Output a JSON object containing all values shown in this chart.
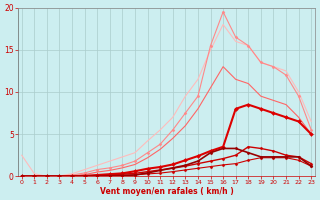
{
  "x": [
    0,
    1,
    2,
    3,
    4,
    5,
    6,
    7,
    8,
    9,
    10,
    11,
    12,
    13,
    14,
    15,
    16,
    17,
    18,
    19,
    20,
    21,
    22,
    23
  ],
  "line_lightest": [
    2.5,
    0.3,
    0.0,
    0.05,
    0.3,
    0.8,
    1.3,
    1.8,
    2.3,
    2.8,
    4.2,
    5.5,
    7.0,
    9.5,
    11.5,
    15.0,
    18.0,
    16.0,
    15.5,
    13.5,
    13.0,
    12.5,
    10.0,
    6.5
  ],
  "line_light": [
    0.0,
    0.0,
    0.0,
    0.0,
    0.15,
    0.4,
    0.8,
    1.0,
    1.3,
    1.8,
    2.8,
    3.8,
    5.5,
    7.5,
    9.5,
    15.5,
    19.5,
    16.5,
    15.5,
    13.5,
    13.0,
    12.0,
    9.5,
    5.5
  ],
  "line_mid": [
    0.0,
    0.0,
    0.0,
    0.0,
    0.05,
    0.2,
    0.5,
    0.7,
    1.0,
    1.4,
    2.2,
    3.2,
    4.5,
    6.0,
    8.0,
    10.5,
    13.0,
    11.5,
    11.0,
    9.5,
    9.0,
    8.5,
    7.0,
    5.0
  ],
  "line_dark1": [
    0.0,
    0.0,
    0.0,
    0.0,
    0.0,
    0.05,
    0.15,
    0.25,
    0.35,
    0.6,
    0.9,
    1.1,
    1.4,
    1.9,
    2.4,
    3.0,
    3.5,
    8.0,
    8.5,
    8.0,
    7.5,
    7.0,
    6.5,
    5.0
  ],
  "line_dark2": [
    0.0,
    0.0,
    0.0,
    0.0,
    0.0,
    0.0,
    0.08,
    0.15,
    0.25,
    0.35,
    0.55,
    0.75,
    0.95,
    1.2,
    1.5,
    1.8,
    2.1,
    2.5,
    3.5,
    3.3,
    3.0,
    2.5,
    2.3,
    1.5
  ],
  "line_darkest1": [
    0.0,
    0.0,
    0.0,
    0.0,
    0.0,
    0.0,
    0.04,
    0.08,
    0.12,
    0.18,
    0.28,
    0.38,
    0.55,
    0.75,
    0.95,
    1.15,
    1.35,
    1.5,
    1.9,
    2.2,
    2.2,
    2.2,
    1.9,
    1.2
  ],
  "line_darkest2": [
    0.0,
    0.0,
    0.0,
    0.0,
    0.0,
    0.0,
    0.0,
    0.04,
    0.08,
    0.15,
    0.4,
    0.7,
    1.0,
    1.3,
    1.8,
    2.8,
    3.3,
    3.3,
    2.8,
    2.3,
    2.3,
    2.3,
    2.3,
    1.2
  ],
  "bg_color": "#cceef0",
  "grid_color": "#aacccc",
  "colors": [
    "#ffbbbb",
    "#ff8888",
    "#ff6666",
    "#dd0000",
    "#cc0000",
    "#cc0000",
    "#990000"
  ],
  "linewidths": [
    0.8,
    0.8,
    0.8,
    1.5,
    1.0,
    0.8,
    1.2
  ],
  "markers": [
    null,
    "D",
    null,
    "D",
    "D",
    "D",
    "D"
  ],
  "markersizes": [
    0,
    1.5,
    0,
    2,
    1.5,
    1.5,
    1.5
  ],
  "xlabel": "Vent moyen/en rafales ( km/h )",
  "ylim": [
    0,
    20
  ],
  "xlim": [
    0,
    23
  ],
  "yticks": [
    0,
    5,
    10,
    15,
    20
  ],
  "xticks": [
    0,
    1,
    2,
    3,
    4,
    5,
    6,
    7,
    8,
    9,
    10,
    11,
    12,
    13,
    14,
    15,
    16,
    17,
    18,
    19,
    20,
    21,
    22,
    23
  ],
  "tick_color": "#cc0000",
  "xlabel_color": "#cc0000",
  "spine_color": "#888888",
  "bottom_spine_color": "#cc0000"
}
